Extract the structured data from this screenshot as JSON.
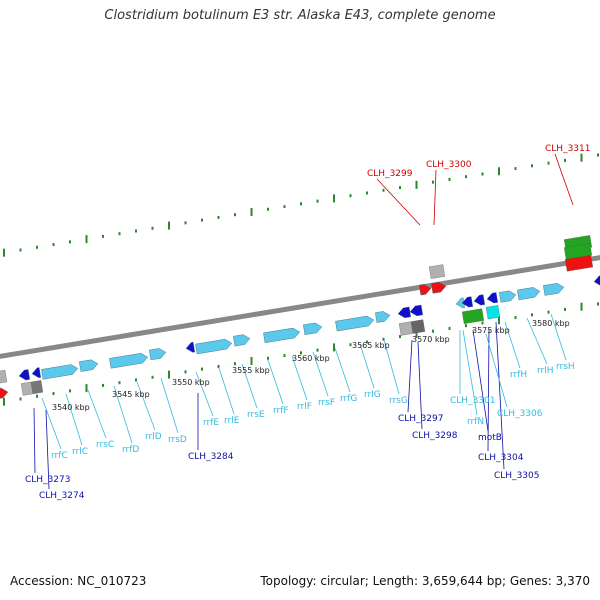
{
  "title": "Clostridium botulinum E3 str. Alaska E43, complete genome",
  "accession": "Accession: NC_010723",
  "summary": "Topology: circular; Length: 3,659,644 bp; Genes: 3,370",
  "colors": {
    "backbone": "#888888",
    "tick_outer": "#2a8a2a",
    "tick_inner": "#2a8a2a",
    "cds_light": "#5bc8ec",
    "cds_dark": "#1010cc",
    "rna_cyan": "#00e5e5",
    "rna_green": "#22a522",
    "red": "#ee1111",
    "gray": "#b0b0b0",
    "label_red": "#cc0000",
    "label_blue": "#1010aa",
    "label_cyan": "#33bbdd",
    "scale_label": "#222222"
  },
  "scale_labels": [
    "3540 kbp",
    "3545 kbp",
    "3550 kbp",
    "3555 kbp",
    "3560 kbp",
    "3565 kbp",
    "3570 kbp",
    "3575 kbp",
    "3580 kbp"
  ],
  "feature_labels": [
    {
      "text": "CLH_3299",
      "color": "red"
    },
    {
      "text": "CLH_3300",
      "color": "red"
    },
    {
      "text": "CLH_3311",
      "color": "red"
    },
    {
      "text": "CLH_3273",
      "color": "blue"
    },
    {
      "text": "CLH_3274",
      "color": "blue"
    },
    {
      "text": "CLH_3284",
      "color": "blue"
    },
    {
      "text": "CLH_3297",
      "color": "blue"
    },
    {
      "text": "CLH_3298",
      "color": "blue"
    },
    {
      "text": "motB",
      "color": "blue"
    },
    {
      "text": "CLH_3304",
      "color": "blue"
    },
    {
      "text": "CLH_3305",
      "color": "blue"
    },
    {
      "text": "rrfC",
      "color": "cyan"
    },
    {
      "text": "rrlC",
      "color": "cyan"
    },
    {
      "text": "rrsC",
      "color": "cyan"
    },
    {
      "text": "rrfD",
      "color": "cyan"
    },
    {
      "text": "rrlD",
      "color": "cyan"
    },
    {
      "text": "rrsD",
      "color": "cyan"
    },
    {
      "text": "rrfE",
      "color": "cyan"
    },
    {
      "text": "rrlE",
      "color": "cyan"
    },
    {
      "text": "rrsE",
      "color": "cyan"
    },
    {
      "text": "rrfF",
      "color": "cyan"
    },
    {
      "text": "rrlF",
      "color": "cyan"
    },
    {
      "text": "rrsF",
      "color": "cyan"
    },
    {
      "text": "rrfG",
      "color": "cyan"
    },
    {
      "text": "rrlG",
      "color": "cyan"
    },
    {
      "text": "rrsG",
      "color": "cyan"
    },
    {
      "text": "CLH_3301",
      "color": "cyan"
    },
    {
      "text": "rrfN",
      "color": "cyan"
    },
    {
      "text": "CLH_3306",
      "color": "cyan"
    },
    {
      "text": "rrfH",
      "color": "cyan"
    },
    {
      "text": "rrlH",
      "color": "cyan"
    },
    {
      "text": "rrsH",
      "color": "cyan"
    }
  ]
}
